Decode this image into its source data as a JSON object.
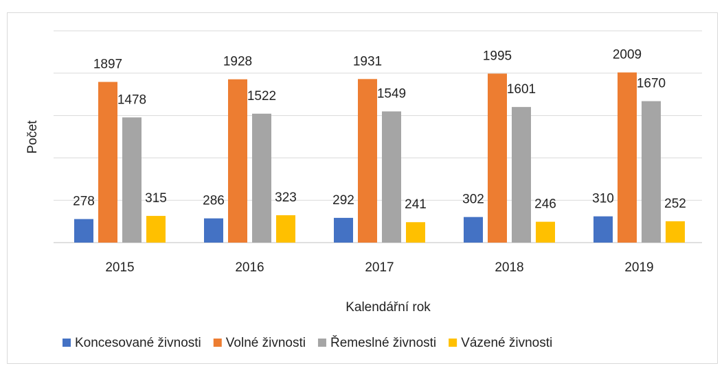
{
  "chart_data": {
    "type": "bar",
    "xlabel": "Kalendářní rok",
    "ylabel": "Počet",
    "categories": [
      "2015",
      "2016",
      "2017",
      "2018",
      "2019"
    ],
    "series": [
      {
        "name": "Koncesované živnosti",
        "color": "#4472c4",
        "values": [
          278,
          286,
          292,
          302,
          310
        ]
      },
      {
        "name": "Volné živnosti",
        "color": "#ed7d31",
        "values": [
          1897,
          1928,
          1931,
          1995,
          2009
        ]
      },
      {
        "name": "Řemeslné živnosti",
        "color": "#a5a5a5",
        "values": [
          1478,
          1522,
          1549,
          1601,
          1670
        ]
      },
      {
        "name": "Vázené živnosti",
        "color": "#ffc000",
        "values": [
          315,
          323,
          241,
          246,
          252
        ]
      }
    ],
    "ylim": [
      0,
      2500
    ],
    "yticks": [
      0,
      500,
      1000,
      1500,
      2000,
      2500
    ],
    "grid": true,
    "legend": "bottom"
  }
}
